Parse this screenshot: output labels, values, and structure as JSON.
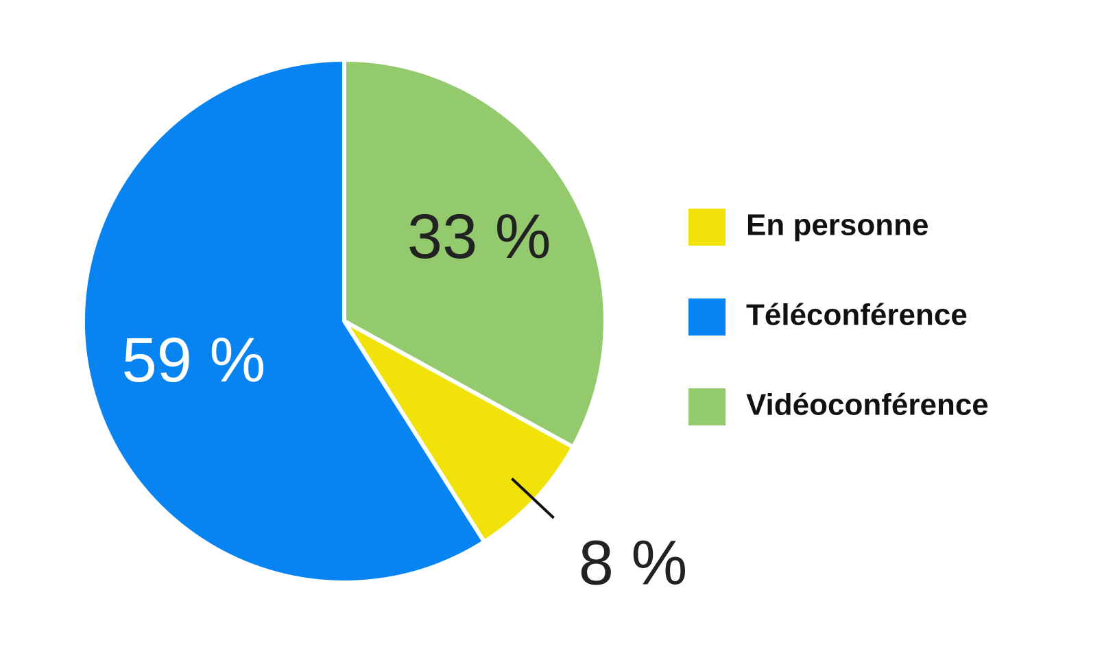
{
  "chart_data": {
    "type": "pie",
    "categories": [
      "En personne",
      "Téléconférence",
      "Vidéoconférence"
    ],
    "values": [
      8,
      59,
      33
    ],
    "value_labels": [
      "8 %",
      "59 %",
      "33 %"
    ],
    "colors": [
      "#f1e20a",
      "#0783f2",
      "#93ca6d"
    ],
    "legend": "right"
  }
}
